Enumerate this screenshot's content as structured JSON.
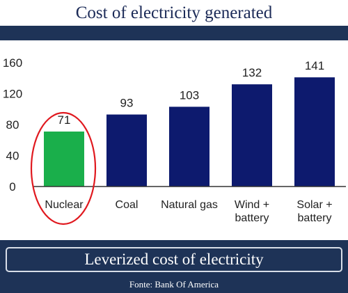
{
  "header": {
    "title": "Cost of electricity generated"
  },
  "footer": {
    "subtitle": "Leverized cost of electricity",
    "source": "Fonte: Bank Of America"
  },
  "colors": {
    "bar": "#0d1a6e",
    "highlight_bar": "#1aaf4b",
    "highlight_circle": "#e0191f",
    "band": "#1e3357"
  },
  "chart_data": {
    "type": "bar",
    "title": "Cost of electricity generated",
    "categories": [
      [
        "Nuclear"
      ],
      [
        "Coal"
      ],
      [
        "Natural gas"
      ],
      [
        "Wind +",
        "battery"
      ],
      [
        "Solar +",
        "battery"
      ]
    ],
    "values": [
      71,
      93,
      103,
      132,
      141
    ],
    "highlight_index": 0,
    "yticks": [
      0,
      40,
      80,
      120,
      160
    ],
    "ylim": [
      0,
      160
    ],
    "xlabel": "",
    "ylabel": "",
    "grid": false
  }
}
